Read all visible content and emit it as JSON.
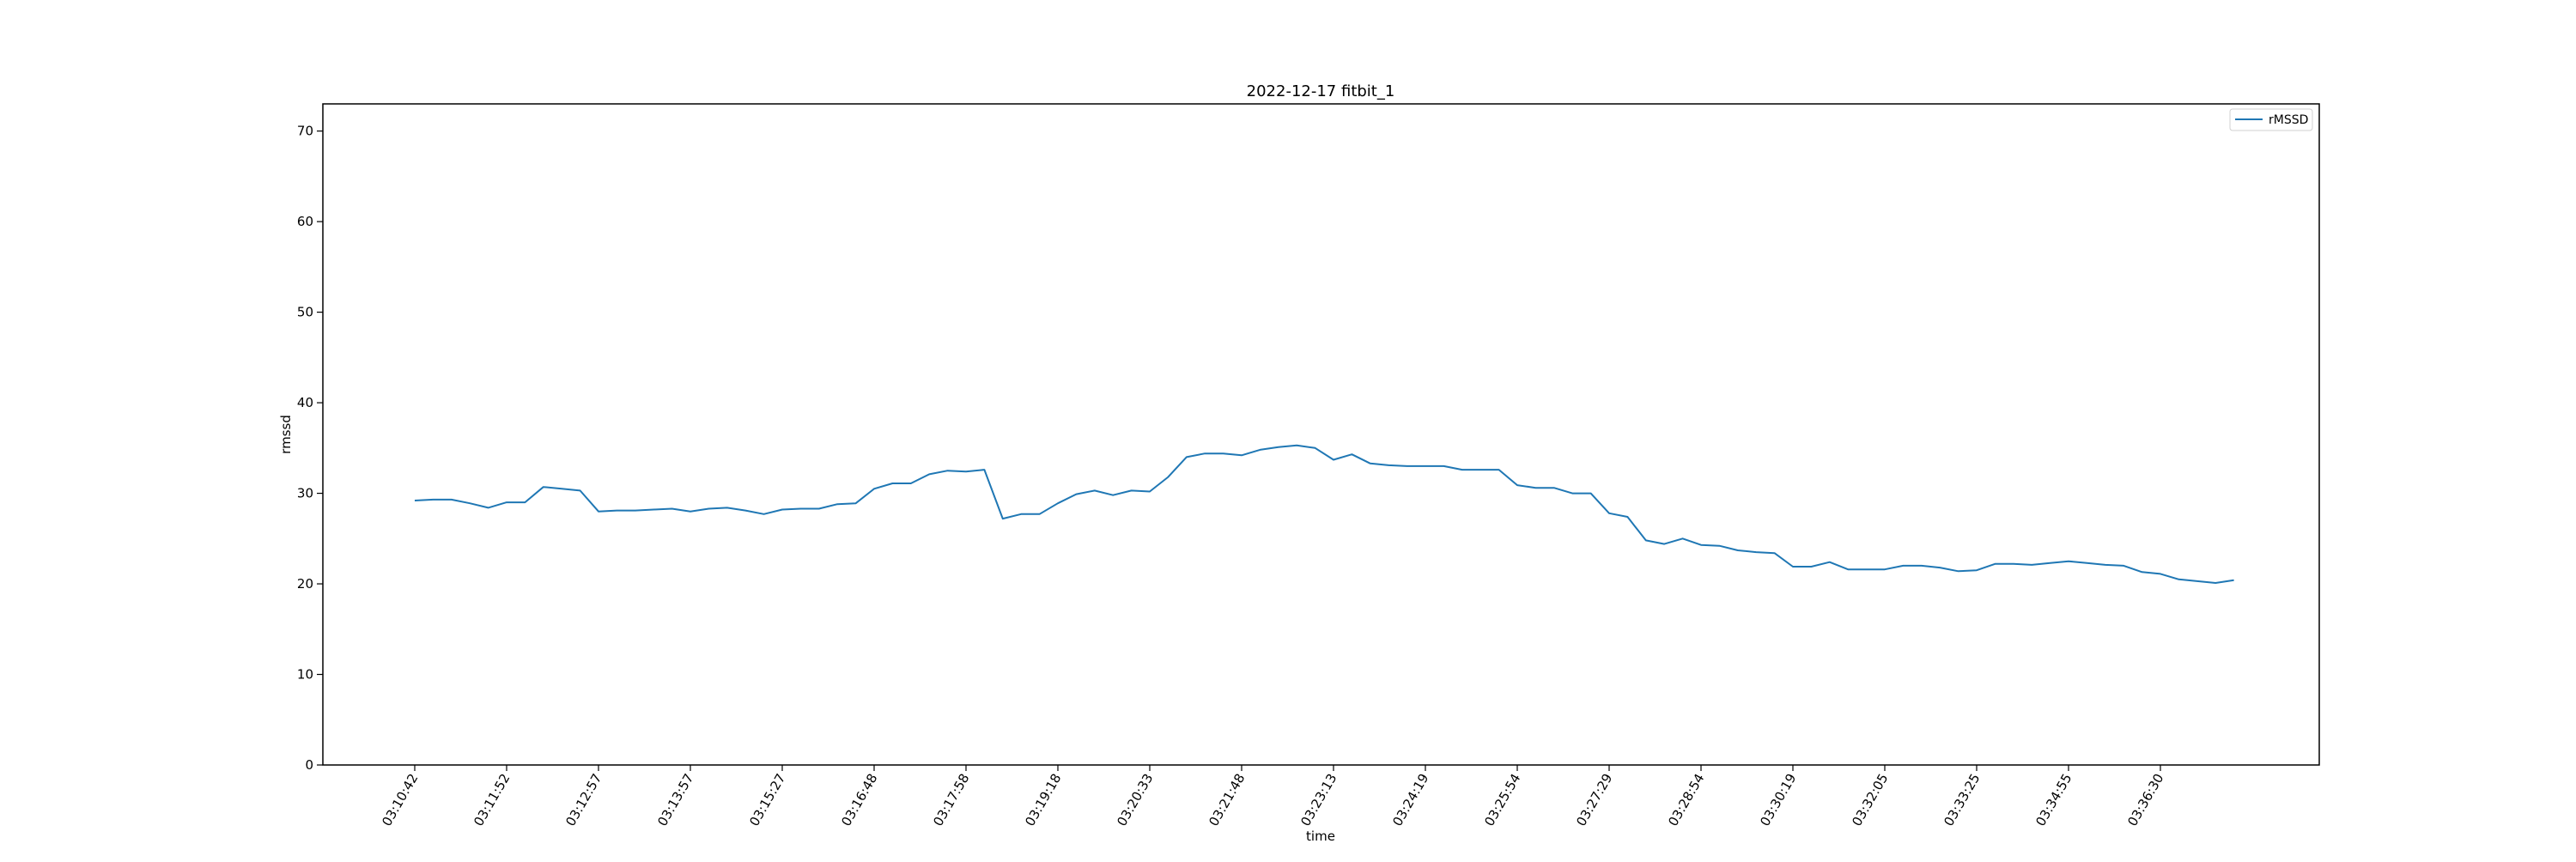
{
  "chart_data": {
    "type": "line",
    "title": "2022-12-17   fitbit_1",
    "xlabel": "time",
    "ylabel": "rmssd",
    "ylim": [
      0,
      73
    ],
    "yticks": [
      0,
      10,
      20,
      30,
      40,
      50,
      60,
      70
    ],
    "grid": false,
    "legend_position": "top-right",
    "line_color": "#1f77b4",
    "x_tick_labels": [
      "03:10:42",
      "03:11:52",
      "03:12:57",
      "03:13:57",
      "03:15:27",
      "03:16:48",
      "03:17:58",
      "03:19:18",
      "03:20:33",
      "03:21:48",
      "03:23:13",
      "03:24:19",
      "03:25:54",
      "03:27:29",
      "03:28:54",
      "03:30:19",
      "03:32:05",
      "03:33:25",
      "03:34:55",
      "03:36:30"
    ],
    "x_tick_index_step": 5,
    "series": [
      {
        "name": "rMSSD",
        "values": [
          29.2,
          29.3,
          29.3,
          28.9,
          28.4,
          29.0,
          29.0,
          30.7,
          30.5,
          30.3,
          28.0,
          28.1,
          28.1,
          28.2,
          28.3,
          28.0,
          28.3,
          28.4,
          28.1,
          27.7,
          28.2,
          28.3,
          28.3,
          28.8,
          28.9,
          30.5,
          31.1,
          31.1,
          32.1,
          32.5,
          32.4,
          32.6,
          27.2,
          27.7,
          27.7,
          28.9,
          29.9,
          30.3,
          29.8,
          30.3,
          30.2,
          31.8,
          34.0,
          34.4,
          34.4,
          34.2,
          34.8,
          35.1,
          35.3,
          35.0,
          33.7,
          34.3,
          33.3,
          33.1,
          33.0,
          33.0,
          33.0,
          32.6,
          32.6,
          32.6,
          30.9,
          30.6,
          30.6,
          30.0,
          30.0,
          27.8,
          27.4,
          24.8,
          24.4,
          25.0,
          24.3,
          24.2,
          23.7,
          23.5,
          23.4,
          21.9,
          21.9,
          22.4,
          21.6,
          21.6,
          21.6,
          22.0,
          22.0,
          21.8,
          21.4,
          21.5,
          22.2,
          22.2,
          22.1,
          22.3,
          22.5,
          22.3,
          22.1,
          22.0,
          21.3,
          21.1,
          20.5,
          20.3,
          20.1,
          20.4
        ]
      }
    ]
  }
}
